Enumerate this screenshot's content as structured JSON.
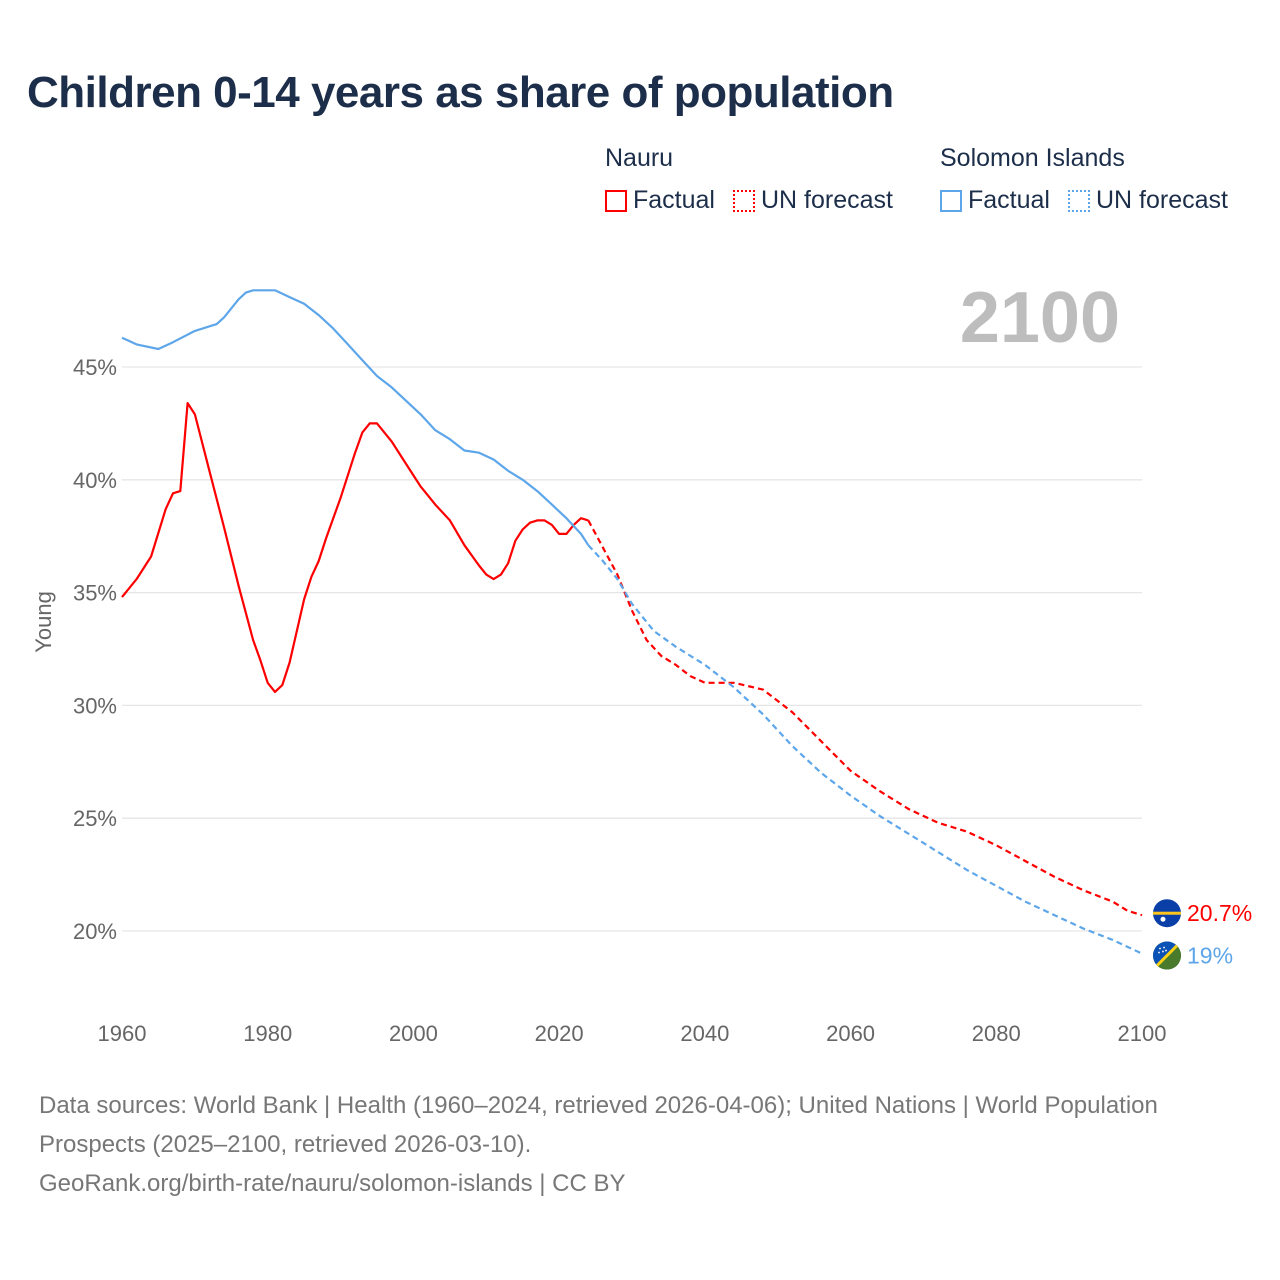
{
  "title": "Children 0-14 years as share of population",
  "legend": {
    "groups": [
      {
        "name": "Nauru",
        "color": "#ff0000",
        "factual": "Factual",
        "forecast": "UN forecast"
      },
      {
        "name": "Solomon Islands",
        "color": "#5ea6ea",
        "factual": "Factual",
        "forecast": "UN forecast"
      }
    ]
  },
  "year_label": "2100",
  "chart_data": {
    "type": "line",
    "title": "Children 0-14 years as share of population",
    "xlabel": "",
    "ylabel": "Young",
    "xlim": [
      1960,
      2100
    ],
    "ylim": [
      17,
      50
    ],
    "xticks": [
      "1960",
      "1980",
      "2000",
      "2020",
      "2040",
      "2060",
      "2080",
      "2100"
    ],
    "yticks": [
      "20%",
      "25%",
      "30%",
      "35%",
      "40%",
      "45%"
    ],
    "ytick_values": [
      20,
      25,
      30,
      35,
      40,
      45
    ],
    "grid": true,
    "series": [
      {
        "name": "Nauru",
        "color": "#ff0000",
        "end_label": "20.7%",
        "factual": [
          [
            1960,
            34.8
          ],
          [
            1962,
            35.6
          ],
          [
            1964,
            36.6
          ],
          [
            1966,
            38.7
          ],
          [
            1967,
            39.4
          ],
          [
            1968,
            39.5
          ],
          [
            1969,
            43.4
          ],
          [
            1970,
            42.9
          ],
          [
            1972,
            40.4
          ],
          [
            1974,
            37.9
          ],
          [
            1976,
            35.3
          ],
          [
            1978,
            32.9
          ],
          [
            1979,
            32.0
          ],
          [
            1980,
            31.0
          ],
          [
            1981,
            30.6
          ],
          [
            1982,
            30.9
          ],
          [
            1983,
            31.9
          ],
          [
            1985,
            34.7
          ],
          [
            1986,
            35.7
          ],
          [
            1987,
            36.4
          ],
          [
            1988,
            37.4
          ],
          [
            1990,
            39.2
          ],
          [
            1992,
            41.2
          ],
          [
            1993,
            42.1
          ],
          [
            1994,
            42.5
          ],
          [
            1995,
            42.5
          ],
          [
            1997,
            41.7
          ],
          [
            1999,
            40.7
          ],
          [
            2001,
            39.7
          ],
          [
            2003,
            38.9
          ],
          [
            2005,
            38.2
          ],
          [
            2007,
            37.1
          ],
          [
            2009,
            36.2
          ],
          [
            2010,
            35.8
          ],
          [
            2011,
            35.6
          ],
          [
            2012,
            35.8
          ],
          [
            2013,
            36.3
          ],
          [
            2014,
            37.3
          ],
          [
            2015,
            37.8
          ],
          [
            2016,
            38.1
          ],
          [
            2017,
            38.2
          ],
          [
            2018,
            38.2
          ],
          [
            2019,
            38.0
          ],
          [
            2020,
            37.6
          ],
          [
            2021,
            37.6
          ],
          [
            2022,
            38.0
          ],
          [
            2023,
            38.3
          ],
          [
            2024,
            38.2
          ]
        ],
        "forecast": [
          [
            2024,
            38.2
          ],
          [
            2025,
            37.6
          ],
          [
            2028,
            35.8
          ],
          [
            2030,
            34.2
          ],
          [
            2032,
            32.9
          ],
          [
            2034,
            32.2
          ],
          [
            2036,
            31.8
          ],
          [
            2038,
            31.3
          ],
          [
            2040,
            31.0
          ],
          [
            2044,
            31.0
          ],
          [
            2048,
            30.7
          ],
          [
            2052,
            29.7
          ],
          [
            2056,
            28.4
          ],
          [
            2060,
            27.1
          ],
          [
            2064,
            26.2
          ],
          [
            2068,
            25.4
          ],
          [
            2072,
            24.8
          ],
          [
            2076,
            24.4
          ],
          [
            2080,
            23.8
          ],
          [
            2084,
            23.1
          ],
          [
            2088,
            22.4
          ],
          [
            2092,
            21.8
          ],
          [
            2096,
            21.3
          ],
          [
            2098,
            20.9
          ],
          [
            2100,
            20.7
          ]
        ]
      },
      {
        "name": "Solomon Islands",
        "color": "#5ea6ea",
        "end_label": "19%",
        "factual": [
          [
            1960,
            46.3
          ],
          [
            1962,
            46.0
          ],
          [
            1965,
            45.8
          ],
          [
            1967,
            46.1
          ],
          [
            1970,
            46.6
          ],
          [
            1973,
            46.9
          ],
          [
            1974,
            47.2
          ],
          [
            1976,
            48.0
          ],
          [
            1977,
            48.3
          ],
          [
            1978,
            48.4
          ],
          [
            1981,
            48.4
          ],
          [
            1983,
            48.1
          ],
          [
            1985,
            47.8
          ],
          [
            1987,
            47.3
          ],
          [
            1989,
            46.7
          ],
          [
            1991,
            46.0
          ],
          [
            1993,
            45.3
          ],
          [
            1995,
            44.6
          ],
          [
            1997,
            44.1
          ],
          [
            1999,
            43.5
          ],
          [
            2001,
            42.9
          ],
          [
            2003,
            42.2
          ],
          [
            2005,
            41.8
          ],
          [
            2007,
            41.3
          ],
          [
            2009,
            41.2
          ],
          [
            2011,
            40.9
          ],
          [
            2013,
            40.4
          ],
          [
            2015,
            40.0
          ],
          [
            2017,
            39.5
          ],
          [
            2019,
            38.9
          ],
          [
            2021,
            38.3
          ],
          [
            2023,
            37.6
          ],
          [
            2024,
            37.1
          ]
        ],
        "forecast": [
          [
            2024,
            37.1
          ],
          [
            2026,
            36.4
          ],
          [
            2028,
            35.6
          ],
          [
            2030,
            34.5
          ],
          [
            2033,
            33.3
          ],
          [
            2036,
            32.6
          ],
          [
            2040,
            31.8
          ],
          [
            2044,
            30.8
          ],
          [
            2048,
            29.6
          ],
          [
            2052,
            28.2
          ],
          [
            2056,
            27.0
          ],
          [
            2060,
            26.0
          ],
          [
            2064,
            25.1
          ],
          [
            2068,
            24.3
          ],
          [
            2072,
            23.5
          ],
          [
            2076,
            22.7
          ],
          [
            2080,
            22.0
          ],
          [
            2084,
            21.3
          ],
          [
            2088,
            20.7
          ],
          [
            2092,
            20.1
          ],
          [
            2096,
            19.6
          ],
          [
            2100,
            19.0
          ]
        ]
      }
    ]
  },
  "footer": {
    "line1": "Data sources: World Bank | Health (1960–2024, retrieved 2026-04-06); United Nations | World Population Prospects (2025–2100, retrieved 2026-03-10).",
    "line2": "GeoRank.org/birth-rate/nauru/solomon-islands | CC BY"
  }
}
